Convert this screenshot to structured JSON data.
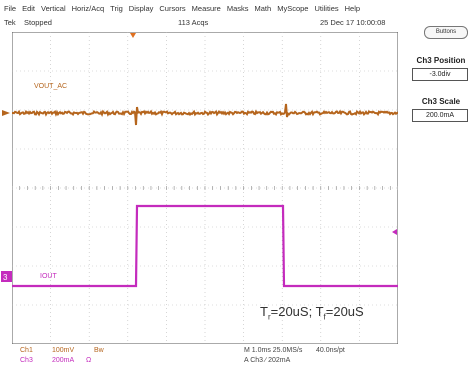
{
  "menu": [
    "File",
    "Edit",
    "Vertical",
    "Horiz/Acq",
    "Trig",
    "Display",
    "Cursors",
    "Measure",
    "Masks",
    "Math",
    "MyScope",
    "Utilities",
    "Help"
  ],
  "status": {
    "brand": "Tek",
    "state": "Stopped",
    "acqs": "113 Acqs",
    "datetime": "25 Dec 17 10:00:08"
  },
  "side": {
    "buttons_label": "Buttons",
    "position_title": "Ch3 Position",
    "position_value": "-3.0div",
    "scale_title": "Ch3 Scale",
    "scale_value": "200.0mA"
  },
  "traces": {
    "vout_label": "VOUT_AC",
    "vout_color": "#b5651d",
    "iout_label": "IOUT",
    "iout_color": "#c42bbd",
    "ch3_marker": "3"
  },
  "annotation": {
    "t": "T",
    "r": "r",
    "mid": "=20uS; T",
    "f": "f",
    "end": "=20uS"
  },
  "bottom": {
    "ch1_label": "Ch1",
    "ch1_scale": "100mV",
    "ch1_bw": "Bw",
    "ch3_label": "Ch3",
    "ch3_scale": "200mA",
    "ch3_sym": "Ω",
    "timebase": "M 1.0ms 25.0MS/s",
    "resolution": "40.0ns/pt",
    "trigger": "A  Ch3  ∕  202mA"
  }
}
